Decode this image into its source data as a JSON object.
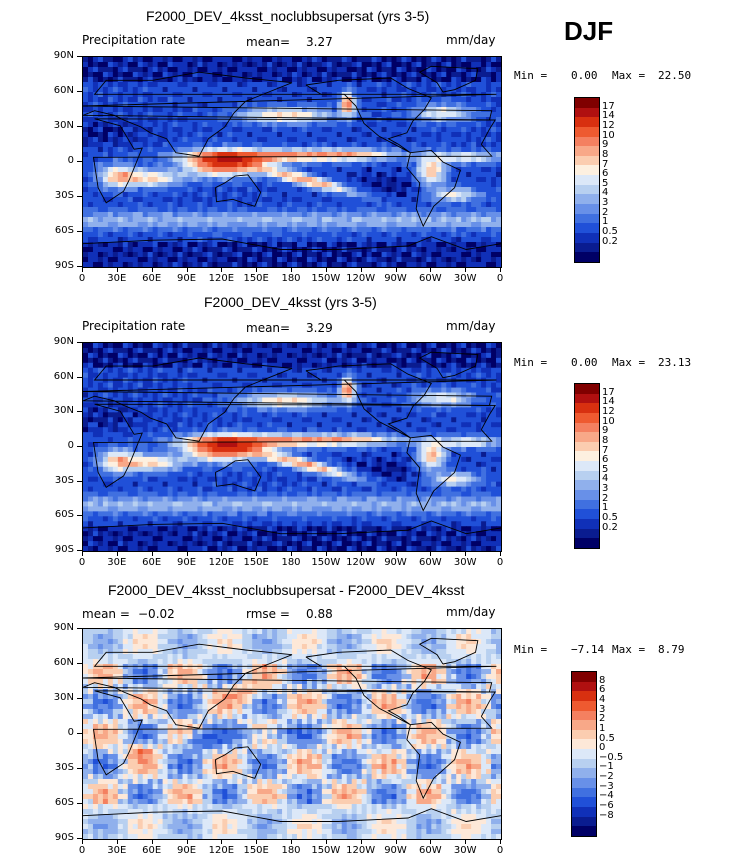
{
  "season": "DJF",
  "panels": [
    {
      "id": "test",
      "title": "F2000_DEV_4ksst_noclubbsupersat (yrs 3-5)",
      "left_label": "Precipitation rate",
      "stat1_label": "mean=",
      "stat1_value": "3.27",
      "units": "mm/day",
      "min_label": "Min =",
      "min_value": "0.00",
      "max_label": "Max =",
      "max_value": "22.50",
      "colorbar": {
        "colors": [
          "#800000",
          "#b01010",
          "#d83010",
          "#ee5a30",
          "#f48060",
          "#f8a888",
          "#fbcdb0",
          "#fdf0e0",
          "#dce8f8",
          "#b8d0f0",
          "#90b0ec",
          "#6890e8",
          "#4070e0",
          "#2050d8",
          "#1030b8",
          "#0a1c90",
          "#000066"
        ],
        "labels": [
          "17",
          "14",
          "12",
          "10",
          "9",
          "8",
          "7",
          "6",
          "5",
          "4",
          "3",
          "2",
          "1",
          "0.5",
          "0.2"
        ]
      }
    },
    {
      "id": "ref",
      "title": "F2000_DEV_4ksst (yrs 3-5)",
      "left_label": "Precipitation rate",
      "stat1_label": "mean=",
      "stat1_value": "3.29",
      "units": "mm/day",
      "min_label": "Min =",
      "min_value": "0.00",
      "max_label": "Max =",
      "max_value": "23.13",
      "colorbar": {
        "colors": [
          "#800000",
          "#b01010",
          "#d83010",
          "#ee5a30",
          "#f48060",
          "#f8a888",
          "#fbcdb0",
          "#fdf0e0",
          "#dce8f8",
          "#b8d0f0",
          "#90b0ec",
          "#6890e8",
          "#4070e0",
          "#2050d8",
          "#1030b8",
          "#0a1c90",
          "#000066"
        ],
        "labels": [
          "17",
          "14",
          "12",
          "10",
          "9",
          "8",
          "7",
          "6",
          "5",
          "4",
          "3",
          "2",
          "1",
          "0.5",
          "0.2"
        ]
      }
    },
    {
      "id": "diff",
      "title": "F2000_DEV_4ksst_noclubbsupersat - F2000_DEV_4ksst",
      "stat1_label": "mean =",
      "stat1_value": "−0.02",
      "stat2_label": "rmse =",
      "stat2_value": "0.88",
      "units": "mm/day",
      "min_label": "Min =",
      "min_value": "−7.14",
      "max_label": "Max =",
      "max_value": "8.79",
      "colorbar": {
        "colors": [
          "#800000",
          "#b01010",
          "#d83010",
          "#ee5a30",
          "#f48060",
          "#f8a888",
          "#fbcdb0",
          "#fde8d8",
          "#dce8f8",
          "#b8d0f0",
          "#90b0ec",
          "#6890e8",
          "#4070e0",
          "#2050d8",
          "#1030b8",
          "#0a1c90",
          "#000066"
        ],
        "labels": [
          "8",
          "6",
          "4",
          "3",
          "2",
          "1",
          "0.5",
          "0",
          "−0.5",
          "−1",
          "−2",
          "−3",
          "−4",
          "−6",
          "−8"
        ]
      }
    }
  ],
  "axes": {
    "lat_labels": [
      "90N",
      "60N",
      "30N",
      "0",
      "30S",
      "60S",
      "90S"
    ],
    "lon_labels": [
      "0",
      "30E",
      "60E",
      "90E",
      "120E",
      "150E",
      "180",
      "150W",
      "120W",
      "90W",
      "60W",
      "30W",
      "0"
    ]
  }
}
